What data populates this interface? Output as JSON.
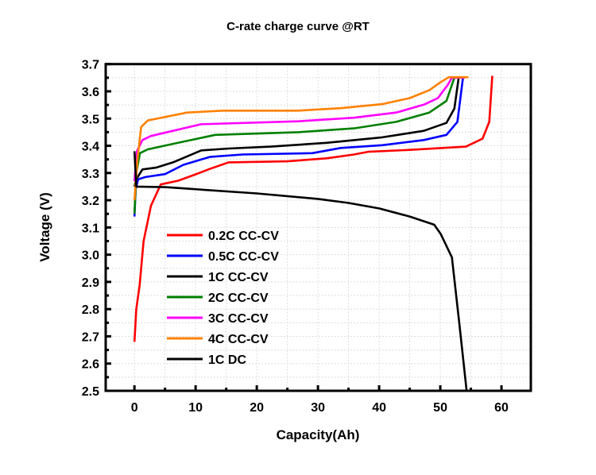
{
  "chart_data": {
    "type": "line",
    "title": "C-rate charge curve @RT",
    "xlabel": "Capacity(Ah)",
    "ylabel": "Voltage (V)",
    "xlim": [
      -4.7,
      64.8
    ],
    "ylim": [
      2.5,
      3.7
    ],
    "xticks": [
      0,
      10,
      20,
      30,
      40,
      50,
      60
    ],
    "yticks": [
      2.5,
      2.6,
      2.7,
      2.8,
      2.9,
      3.0,
      3.1,
      3.2,
      3.3,
      3.4,
      3.5,
      3.6,
      3.7
    ],
    "xtick_labels": [
      "0",
      "10",
      "20",
      "30",
      "40",
      "50",
      "60"
    ],
    "ytick_labels": [
      "2.5",
      "2.6",
      "2.7",
      "2.8",
      "2.9",
      "3.0",
      "3.1",
      "3.2",
      "3.3",
      "3.4",
      "3.5",
      "3.6",
      "3.7"
    ],
    "grid": true,
    "legend_position": "lower-left",
    "series": [
      {
        "name": "0.2C CC-CV",
        "color": "#ff0000",
        "x": [
          0,
          0.3,
          0.86,
          1.5,
          2.7,
          4.3,
          7.2,
          10,
          12.3,
          15.4,
          25,
          31.4,
          35.9,
          38.2,
          45,
          54.2,
          56.9,
          58,
          58.5
        ],
        "y": [
          2.68,
          2.8,
          2.89,
          3.05,
          3.18,
          3.258,
          3.272,
          3.295,
          3.315,
          3.339,
          3.343,
          3.354,
          3.368,
          3.378,
          3.385,
          3.397,
          3.426,
          3.488,
          3.657
        ]
      },
      {
        "name": "0.5C CC-CV",
        "color": "#0000ff",
        "x": [
          0,
          0.2,
          0.6,
          1.8,
          5,
          8,
          12.3,
          17.7,
          29.1,
          33.7,
          40.5,
          47.3,
          51,
          52.8,
          53.7
        ],
        "y": [
          3.14,
          3.24,
          3.277,
          3.285,
          3.296,
          3.33,
          3.359,
          3.368,
          3.373,
          3.392,
          3.402,
          3.421,
          3.44,
          3.488,
          3.65
        ]
      },
      {
        "name": "1C CC-CV",
        "color": "#000000",
        "x": [
          0,
          0.3,
          1.3,
          3.6,
          6.3,
          10.9,
          15.4,
          22.3,
          31.4,
          40.5,
          47.3,
          51,
          52.3,
          53
        ],
        "y": [
          3.25,
          3.277,
          3.313,
          3.32,
          3.339,
          3.383,
          3.39,
          3.397,
          3.411,
          3.431,
          3.455,
          3.484,
          3.537,
          3.65
        ]
      },
      {
        "name": "2C CC-CV",
        "color": "#008000",
        "x": [
          0,
          0.3,
          0.9,
          2.2,
          6.3,
          13.2,
          26.8,
          35.9,
          42.8,
          48.2,
          51,
          52.3,
          53.5
        ],
        "y": [
          3.15,
          3.3,
          3.373,
          3.387,
          3.407,
          3.44,
          3.45,
          3.464,
          3.488,
          3.522,
          3.565,
          3.65,
          3.65
        ]
      },
      {
        "name": "3C CC-CV",
        "color": "#ff00ff",
        "x": [
          0,
          0.4,
          1.3,
          2.7,
          10.9,
          26.8,
          35.9,
          42.8,
          47.3,
          49.6,
          51.2,
          51.9,
          54
        ],
        "y": [
          3.27,
          3.38,
          3.421,
          3.436,
          3.479,
          3.49,
          3.503,
          3.522,
          3.551,
          3.575,
          3.623,
          3.65,
          3.65
        ]
      },
      {
        "name": "4C CC-CV",
        "color": "#ff8000",
        "x": [
          0,
          0.5,
          1.1,
          2.2,
          8.6,
          14.5,
          26.8,
          33.7,
          40.5,
          45,
          48.2,
          50,
          51.4,
          54.6
        ],
        "y": [
          3.2,
          3.35,
          3.469,
          3.493,
          3.522,
          3.529,
          3.529,
          3.538,
          3.553,
          3.575,
          3.604,
          3.633,
          3.652,
          3.652
        ]
      },
      {
        "name": "1C DC",
        "color": "#000000",
        "x": [
          0,
          0.3,
          5,
          20,
          30,
          35,
          40,
          45,
          49,
          50.1,
          51.9,
          53.1,
          54.3
        ],
        "y": [
          3.38,
          3.25,
          3.248,
          3.225,
          3.205,
          3.19,
          3.17,
          3.14,
          3.11,
          3.075,
          2.99,
          2.75,
          2.5
        ]
      }
    ]
  }
}
